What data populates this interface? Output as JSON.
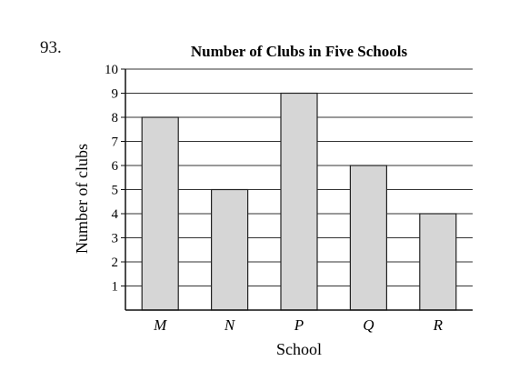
{
  "question_number": "93.",
  "chart_data": {
    "type": "bar",
    "title": "Number of Clubs in Five Schools",
    "xlabel": "School",
    "ylabel": "Number of clubs",
    "categories": [
      "M",
      "N",
      "P",
      "Q",
      "R"
    ],
    "values": [
      8,
      5,
      9,
      6,
      4
    ],
    "ylim": [
      0,
      10
    ],
    "yticks": [
      "1",
      "2",
      "3",
      "4",
      "5",
      "6",
      "7",
      "8",
      "9",
      "10"
    ],
    "grid": true,
    "legend": "none",
    "colors": {
      "bar_fill": "#d6d6d6",
      "bar_stroke": "#222222",
      "grid": "#333333",
      "axis": "#111111"
    }
  }
}
